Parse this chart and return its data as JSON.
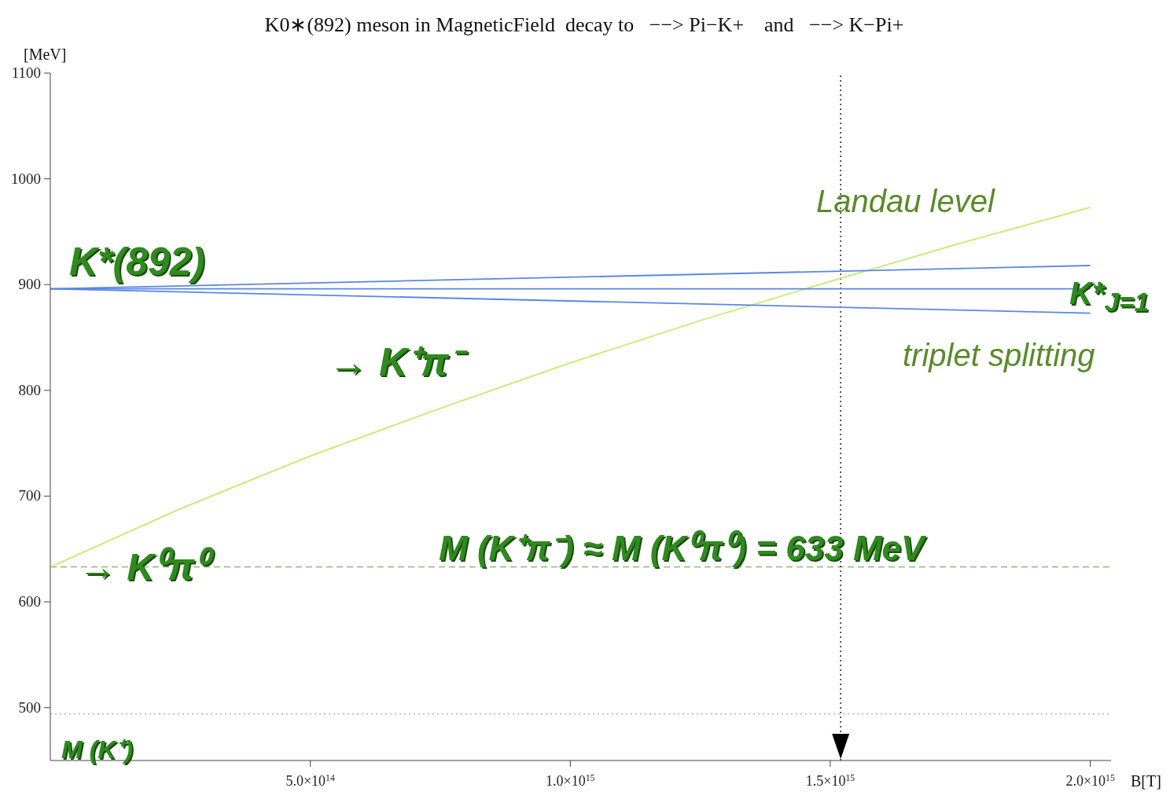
{
  "chart_data": {
    "type": "line",
    "title": "K0∗(892) meson in MagneticField  decay to   −−> Pi−K+    and   −−> K−Pi+",
    "xlabel": "B[T]",
    "ylabel": "[MeV]",
    "xlim": [
      0,
      2040000000000000.0
    ],
    "ylim": [
      450,
      1100
    ],
    "xticks": [
      {
        "value": 500000000000000.0,
        "label": "5.0×10$^{14}$"
      },
      {
        "value": 1000000000000000.0,
        "label": "1.0×10$^{15}$"
      },
      {
        "value": 1500000000000000.0,
        "label": "1.5×10$^{15}$"
      },
      {
        "value": 2000000000000000.0,
        "label": "2.0×10$^{15}$"
      }
    ],
    "yticks": [
      500,
      600,
      700,
      800,
      900,
      1000,
      1100
    ],
    "series": [
      {
        "color": "#bfee6e",
        "x": [
          0,
          250000000000000.0,
          500000000000000.0,
          750000000000000.0,
          1000000000000000.0,
          1250000000000000.0,
          1500000000000000.0,
          1750000000000000.0,
          2000000000000000.0
        ],
        "values": [
          633,
          688,
          738,
          783,
          826,
          866,
          903,
          939,
          973
        ]
      },
      {
        "color": "#5a86e8",
        "x": [
          0,
          2000000000000000.0
        ],
        "values": [
          896,
          918
        ]
      },
      {
        "color": "#5a86e8",
        "x": [
          0,
          2000000000000000.0
        ],
        "values": [
          896,
          896
        ]
      },
      {
        "color": "#5a86e8",
        "x": [
          0,
          2000000000000000.0
        ],
        "values": [
          896,
          873
        ]
      }
    ],
    "ref_lines": [
      {
        "axis": "y",
        "value": 633,
        "color": "#8aaa70",
        "line_style": "dashed"
      },
      {
        "axis": "y",
        "value": 494,
        "color": "#b0b0d8",
        "line_style": "dotted"
      },
      {
        "axis": "x",
        "value": 1520000000000000.0,
        "color": "#000000",
        "line_style": "dotted"
      }
    ],
    "annotations": [
      "K*(892)",
      "→ K⁺π⁻",
      "→ K⁰π⁰",
      "M (K⁺π⁻) ≈ M (K⁰π⁰) = 633 MeV",
      "Landau level",
      "K*$_{J=1}$",
      "triplet splitting",
      "M (K⁺)"
    ],
    "grid": false,
    "marker": "none",
    "line_style": "solid"
  }
}
